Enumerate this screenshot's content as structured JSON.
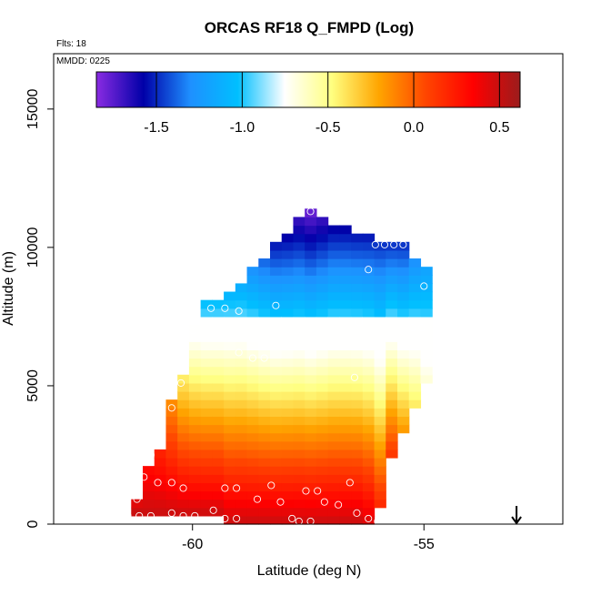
{
  "chart_data": {
    "type": "heatmap",
    "title": "ORCAS RF18 Q_FMPD (Log)",
    "xlabel": "Latitude (deg N)",
    "ylabel": "Altitude (m)",
    "xlim": [
      -63,
      -52.0
    ],
    "ylim": [
      0,
      17000
    ],
    "x_ticks": [
      {
        "value": -60,
        "label": "-60"
      },
      {
        "value": -55,
        "label": "-55"
      }
    ],
    "y_ticks": [
      {
        "value": 0,
        "label": "0"
      },
      {
        "value": 5000,
        "label": "5000"
      },
      {
        "value": 10000,
        "label": "10000"
      },
      {
        "value": 15000,
        "label": "15000"
      }
    ],
    "annotations": {
      "flights": "Flts: 18",
      "mmdd": "MMDD: 0225"
    },
    "colorbar": {
      "range": [
        -1.85,
        0.62
      ],
      "ticks": [
        {
          "value": -1.5,
          "label": "-1.5"
        },
        {
          "value": -1.0,
          "label": "-1.0"
        },
        {
          "value": -0.5,
          "label": "-0.5"
        },
        {
          "value": 0.0,
          "label": "0.0"
        },
        {
          "value": 0.5,
          "label": "0.5"
        }
      ],
      "colors": [
        "#8a2be2",
        "#0000a8",
        "#1e90ff",
        "#00bfff",
        "#ffffff",
        "#ffff80",
        "#ffa500",
        "#ff4500",
        "#ff0000",
        "#9b1c1c"
      ]
    },
    "grid": {
      "cell_width_deg": 0.25,
      "cell_height_m": 300
    },
    "columns": [
      {
        "lat": -61.2,
        "alt_min": 300,
        "alt_max": 900,
        "v_bot": 0.52,
        "v_top": 0.4
      },
      {
        "lat": -60.95,
        "alt_min": 300,
        "alt_max": 2100,
        "v_bot": 0.5,
        "v_top": 0.3
      },
      {
        "lat": -60.7,
        "alt_min": 300,
        "alt_max": 2700,
        "v_bot": 0.5,
        "v_top": 0.2
      },
      {
        "lat": -60.45,
        "alt_min": 300,
        "alt_max": 4500,
        "v_bot": 0.5,
        "v_top": -0.15
      },
      {
        "lat": -60.2,
        "alt_min": 300,
        "alt_max": 5400,
        "v_bot": 0.5,
        "v_top": -0.45
      },
      {
        "lat": -59.95,
        "alt_min": 300,
        "alt_max": 7200,
        "v_bot": 0.5,
        "v_top": -0.85
      },
      {
        "lat": -59.7,
        "alt_min": 300,
        "alt_max": 8100,
        "v_bot": 0.5,
        "v_top": -1.05
      },
      {
        "lat": -59.45,
        "alt_min": 300,
        "alt_max": 8100,
        "v_bot": 0.5,
        "v_top": -1.05
      },
      {
        "lat": -59.2,
        "alt_min": 0,
        "alt_max": 8400,
        "v_bot": 0.5,
        "v_top": -1.1
      },
      {
        "lat": -58.95,
        "alt_min": 0,
        "alt_max": 8700,
        "v_bot": 0.5,
        "v_top": -1.15
      },
      {
        "lat": -58.7,
        "alt_min": 0,
        "alt_max": 9300,
        "v_bot": 0.5,
        "v_top": -1.3
      },
      {
        "lat": -58.45,
        "alt_min": 0,
        "alt_max": 9600,
        "v_bot": 0.5,
        "v_top": -1.4
      },
      {
        "lat": -58.2,
        "alt_min": 0,
        "alt_max": 10200,
        "v_bot": 0.5,
        "v_top": -1.55
      },
      {
        "lat": -57.95,
        "alt_min": 0,
        "alt_max": 10500,
        "v_bot": 0.5,
        "v_top": -1.6
      },
      {
        "lat": -57.7,
        "alt_min": 0,
        "alt_max": 11100,
        "v_bot": 0.5,
        "v_top": -1.7
      },
      {
        "lat": -57.45,
        "alt_min": 0,
        "alt_max": 11400,
        "v_bot": 0.5,
        "v_top": -1.8
      },
      {
        "lat": -57.2,
        "alt_min": 0,
        "alt_max": 11100,
        "v_bot": 0.5,
        "v_top": -1.7
      },
      {
        "lat": -56.95,
        "alt_min": 0,
        "alt_max": 10800,
        "v_bot": 0.5,
        "v_top": -1.6
      },
      {
        "lat": -56.7,
        "alt_min": 0,
        "alt_max": 10800,
        "v_bot": 0.5,
        "v_top": -1.6
      },
      {
        "lat": -56.45,
        "alt_min": 0,
        "alt_max": 10500,
        "v_bot": 0.5,
        "v_top": -1.55
      },
      {
        "lat": -56.2,
        "alt_min": 0,
        "alt_max": 10500,
        "v_bot": 0.45,
        "v_top": -1.55
      },
      {
        "lat": -55.95,
        "alt_min": 600,
        "alt_max": 10200,
        "v_bot": 0.2,
        "v_top": -1.5
      },
      {
        "lat": -55.7,
        "alt_min": 2400,
        "alt_max": 10200,
        "v_bot": 0.15,
        "v_top": -1.5
      },
      {
        "lat": -55.45,
        "alt_min": 3300,
        "alt_max": 10200,
        "v_bot": -0.15,
        "v_top": -1.5
      },
      {
        "lat": -55.2,
        "alt_min": 4200,
        "alt_max": 9600,
        "v_bot": -0.4,
        "v_top": -1.3
      },
      {
        "lat": -54.95,
        "alt_min": 5100,
        "alt_max": 9300,
        "v_bot": -0.65,
        "v_top": -1.2
      }
    ],
    "points": [
      [
        -57.45,
        11300
      ],
      [
        -58.95,
        9800
      ],
      [
        -56.05,
        10100
      ],
      [
        -55.85,
        10100
      ],
      [
        -55.65,
        10100
      ],
      [
        -55.45,
        10100
      ],
      [
        -56.2,
        9200
      ],
      [
        -55.0,
        8600
      ],
      [
        -59.6,
        7800
      ],
      [
        -59.3,
        7800
      ],
      [
        -59.0,
        7700
      ],
      [
        -58.2,
        7900
      ],
      [
        -56.4,
        7300
      ],
      [
        -60.0,
        7000
      ],
      [
        -55.25,
        7100
      ],
      [
        -55.05,
        7100
      ],
      [
        -59.0,
        6200
      ],
      [
        -58.7,
        6000
      ],
      [
        -58.45,
        6000
      ],
      [
        -56.5,
        5300
      ],
      [
        -60.25,
        5100
      ],
      [
        -60.45,
        4200
      ],
      [
        -60.7,
        3300
      ],
      [
        -60.9,
        2500
      ],
      [
        -61.05,
        1700
      ],
      [
        -60.75,
        1500
      ],
      [
        -60.45,
        1500
      ],
      [
        -60.2,
        1300
      ],
      [
        -59.3,
        1300
      ],
      [
        -59.05,
        1300
      ],
      [
        -58.3,
        1400
      ],
      [
        -57.55,
        1200
      ],
      [
        -57.3,
        1200
      ],
      [
        -56.6,
        1500
      ],
      [
        -61.2,
        900
      ],
      [
        -61.4,
        300
      ],
      [
        -61.15,
        300
      ],
      [
        -60.9,
        300
      ],
      [
        -60.45,
        400
      ],
      [
        -60.2,
        300
      ],
      [
        -59.95,
        300
      ],
      [
        -59.55,
        500
      ],
      [
        -59.3,
        200
      ],
      [
        -59.05,
        200
      ],
      [
        -58.6,
        900
      ],
      [
        -58.1,
        800
      ],
      [
        -57.7,
        100
      ],
      [
        -57.45,
        100
      ],
      [
        -57.15,
        800
      ],
      [
        -56.85,
        700
      ],
      [
        -56.45,
        400
      ],
      [
        -56.2,
        200
      ],
      [
        -56.0,
        100
      ],
      [
        -57.85,
        200
      ]
    ],
    "marker": {
      "lat": -53.0,
      "alt": 0,
      "symbol": "arrow-down"
    }
  },
  "colors": {
    "frame": "#000000",
    "point_stroke": "#ffffff",
    "background": "#ffffff"
  }
}
